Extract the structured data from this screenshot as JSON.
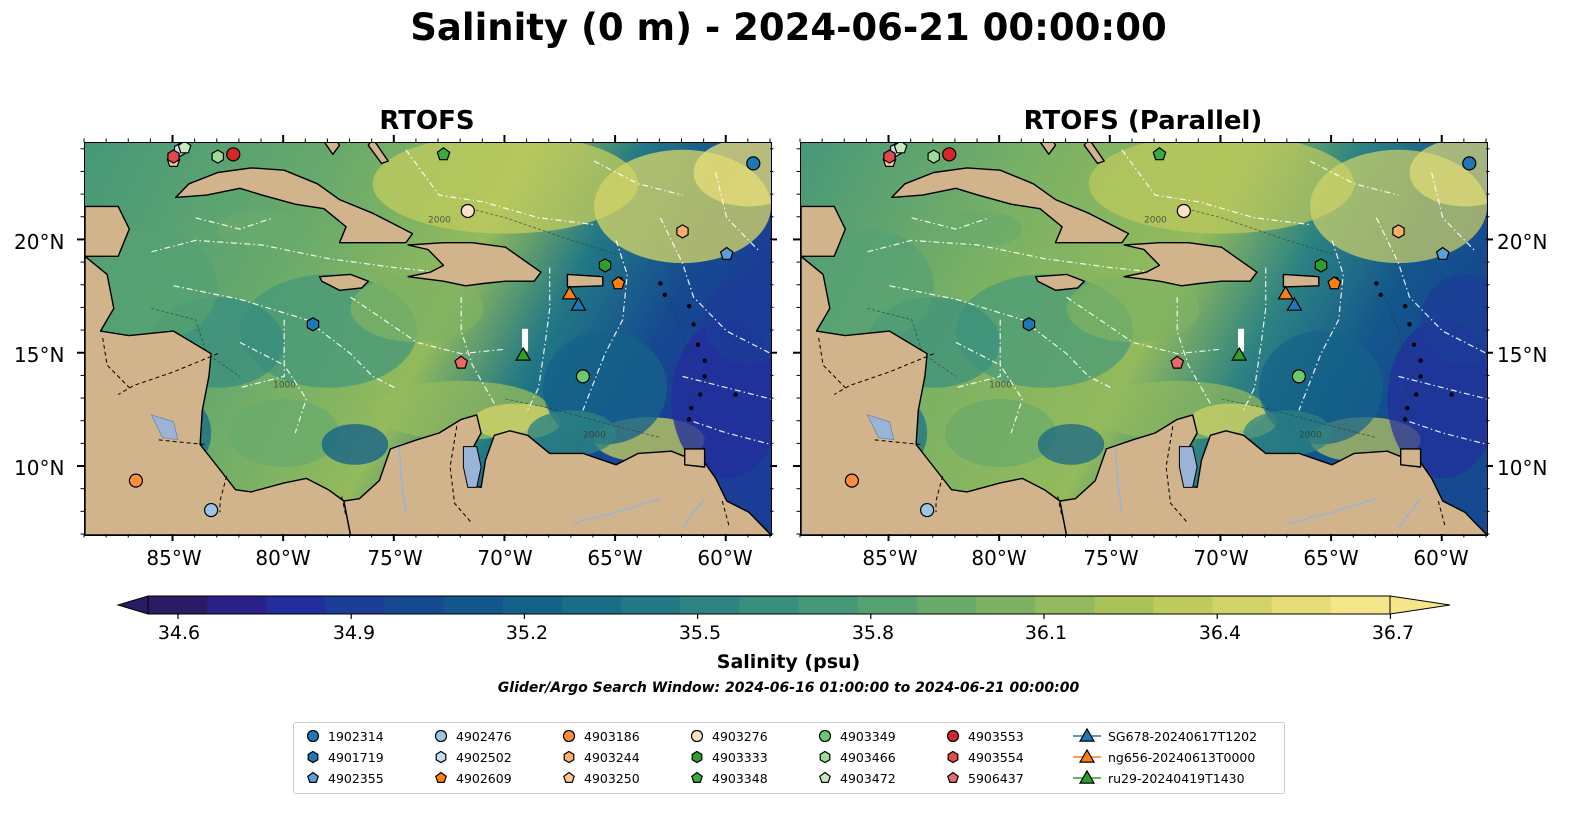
{
  "figure": {
    "suptitle": "Salinity (0 m) - 2024-06-21 00:00:00",
    "search_window": "Glider/Argo Search Window: 2024-06-16 01:00:00 to 2024-06-21 00:00:00"
  },
  "panels": [
    {
      "title": "RTOFS"
    },
    {
      "title": "RTOFS (Parallel)"
    }
  ],
  "axes": {
    "lat_ticks": [
      "20°N",
      "15°N",
      "10°N"
    ],
    "lon_ticks": [
      "85°W",
      "80°W",
      "75°W",
      "70°W",
      "65°W",
      "60°W"
    ],
    "lat_range": [
      7,
      24.3
    ],
    "lon_range": [
      -89,
      -58
    ]
  },
  "colorbar": {
    "label": "Salinity (psu)",
    "ticks": [
      "34.6",
      "34.9",
      "35.2",
      "35.5",
      "35.8",
      "36.1",
      "36.4",
      "36.7"
    ],
    "range": [
      34.6,
      36.7
    ],
    "extend": "both",
    "colormap": "haline",
    "colors": [
      "#2a1b64",
      "#2a228a",
      "#222e9c",
      "#1b3c97",
      "#154a90",
      "#13568c",
      "#146289",
      "#196d87",
      "#227885",
      "#2d8382",
      "#398e7e",
      "#469879",
      "#56a173",
      "#69aa6b",
      "#7db263",
      "#93ba5c",
      "#a9c359",
      "#bfcb5d",
      "#d3d468",
      "#e6dd78",
      "#f6e68a"
    ]
  },
  "bathymetry_contour_labels": [
    "1000",
    "2000"
  ],
  "legend": {
    "columns": [
      [
        {
          "label": "1902314",
          "marker": "circle",
          "color": "#1f77b4"
        },
        {
          "label": "4901719",
          "marker": "hexagon",
          "color": "#1f77b4"
        },
        {
          "label": "4902355",
          "marker": "pentagon",
          "color": "#5a9fd6"
        }
      ],
      [
        {
          "label": "4902476",
          "marker": "circle",
          "color": "#9ec5e8"
        },
        {
          "label": "4902502",
          "marker": "hexagon",
          "color": "#c6dcf0"
        },
        {
          "label": "4902609",
          "marker": "pentagon",
          "color": "#ff7f0e"
        }
      ],
      [
        {
          "label": "4903186",
          "marker": "circle",
          "color": "#fd8d3c"
        },
        {
          "label": "4903244",
          "marker": "hexagon",
          "color": "#fdae6b"
        },
        {
          "label": "4903250",
          "marker": "pentagon",
          "color": "#fdc793"
        }
      ],
      [
        {
          "label": "4903276",
          "marker": "circle",
          "color": "#fde0c5"
        },
        {
          "label": "4903333",
          "marker": "hexagon",
          "color": "#2ca02c"
        },
        {
          "label": "4903348",
          "marker": "pentagon",
          "color": "#3aaa3a"
        }
      ],
      [
        {
          "label": "4903349",
          "marker": "circle",
          "color": "#6bc86b"
        },
        {
          "label": "4903466",
          "marker": "hexagon",
          "color": "#a1d99b"
        },
        {
          "label": "4903472",
          "marker": "pentagon",
          "color": "#c7e9c0"
        }
      ],
      [
        {
          "label": "4903553",
          "marker": "circle",
          "color": "#d62728"
        },
        {
          "label": "4903554",
          "marker": "hexagon",
          "color": "#e04a4a"
        },
        {
          "label": "5906437",
          "marker": "pentagon",
          "color": "#e86a6a"
        }
      ],
      [
        {
          "label": "SG678-20240617T1202",
          "marker": "triangle-line",
          "color": "#1f77b4"
        },
        {
          "label": "ng656-20240613T0000",
          "marker": "triangle-line",
          "color": "#ff7f0e"
        },
        {
          "label": "ru29-20240419T1430",
          "marker": "triangle-line",
          "color": "#2ca02c"
        }
      ]
    ]
  },
  "observations": [
    {
      "id": "1902314",
      "lon": -58.8,
      "lat": 23.4
    },
    {
      "id": "4901719",
      "lon": -78.7,
      "lat": 16.3
    },
    {
      "id": "4902355",
      "lon": -60.0,
      "lat": 19.4
    },
    {
      "id": "4902476",
      "lon": -83.3,
      "lat": 8.1
    },
    {
      "id": "4902502",
      "lon": -84.7,
      "lat": 24.0
    },
    {
      "id": "4902609",
      "lon": -64.9,
      "lat": 18.1
    },
    {
      "id": "4903186",
      "lon": -86.7,
      "lat": 9.4
    },
    {
      "id": "4903244",
      "lon": -62.0,
      "lat": 20.4
    },
    {
      "id": "4903250",
      "lon": -85.0,
      "lat": 23.5
    },
    {
      "id": "4903276",
      "lon": -71.7,
      "lat": 21.3
    },
    {
      "id": "4903333",
      "lon": -65.5,
      "lat": 18.9
    },
    {
      "id": "4903348",
      "lon": -72.8,
      "lat": 23.8
    },
    {
      "id": "4903349",
      "lon": -66.5,
      "lat": 14.0
    },
    {
      "id": "4903466",
      "lon": -83.0,
      "lat": 23.7
    },
    {
      "id": "4903472",
      "lon": -84.5,
      "lat": 24.1
    },
    {
      "id": "4903553",
      "lon": -82.3,
      "lat": 23.8
    },
    {
      "id": "4903554",
      "lon": -85.0,
      "lat": 23.7
    },
    {
      "id": "5906437",
      "lon": -72.0,
      "lat": 14.6
    },
    {
      "id": "SG678-20240617T1202",
      "lon": -66.7,
      "lat": 17.1
    },
    {
      "id": "ng656-20240613T0000",
      "lon": -67.1,
      "lat": 17.6
    },
    {
      "id": "ru29-20240419T1430",
      "lon": -69.2,
      "lat": 14.9
    }
  ],
  "colors": {
    "land": "#d2b48c",
    "lakes": "#9ab3d6",
    "eez": "#ffffff",
    "coast": "#000000"
  }
}
